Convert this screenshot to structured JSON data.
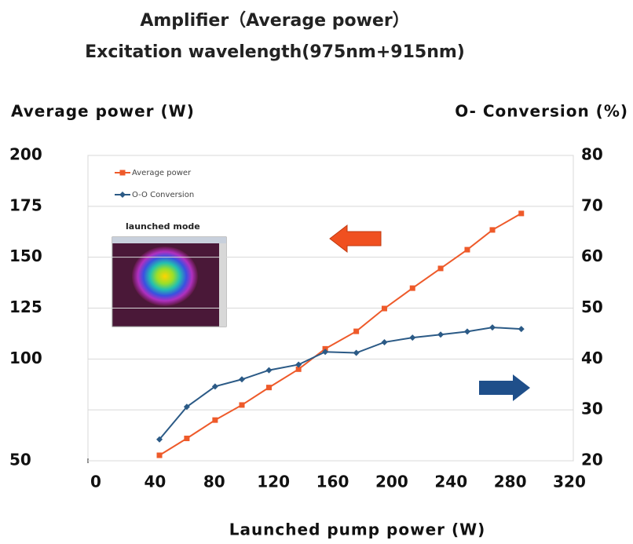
{
  "chart_data": {
    "type": "line",
    "title": "Amplifier（Average power）",
    "subtitle": "Excitation wavelength(975nm+915nm)",
    "y_label": "Average power (W)",
    "y2_label": "O- Conversion (%)",
    "x_label": "Launched pump power (W)",
    "annotation": "launched mode",
    "xlim": [
      0,
      320
    ],
    "xticks": [
      0,
      40,
      80,
      120,
      160,
      200,
      240,
      280,
      320
    ],
    "ylim": [
      50,
      200
    ],
    "yticks": [
      50,
      100,
      125,
      150,
      175,
      200
    ],
    "y2lim": [
      20,
      80
    ],
    "y2ticks": [
      20,
      30,
      40,
      50,
      60,
      70,
      80
    ],
    "grid": true,
    "legend": "upper left",
    "x": [
      43,
      61.5,
      80.6,
      98.7,
      117,
      137,
      155,
      176,
      195,
      214,
      233,
      251,
      268,
      287.5
    ],
    "series": [
      {
        "name": "Average power",
        "color": "#ee5a2a",
        "values": [
          52.7,
          61,
          70,
          77.4,
          86,
          95,
          105,
          113.6,
          124.8,
          134.8,
          144.5,
          153.7,
          163.4,
          171.5
        ]
      },
      {
        "name": "O-O Conversion",
        "color": "#2b5a86",
        "axis": "y2",
        "values": [
          24.2,
          30.6,
          34.6,
          36,
          37.8,
          38.9,
          41.4,
          41.2,
          43.3,
          44.2,
          44.8,
          45.4,
          46.2,
          45.9
        ]
      }
    ]
  }
}
